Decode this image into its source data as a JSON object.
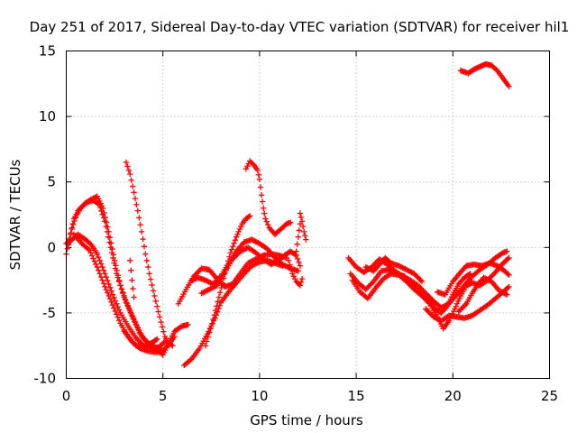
{
  "chart_data": {
    "type": "scatter",
    "title": "Day 251 of 2017, Sidereal Day-to-day VTEC variation (SDTVAR) for receiver hil1",
    "xlabel": "GPS time / hours",
    "ylabel": "SDTVAR / TECUs",
    "xlim": [
      0,
      25
    ],
    "ylim": [
      -10,
      15
    ],
    "xticks": [
      0,
      5,
      10,
      15,
      20,
      25
    ],
    "yticks": [
      -10,
      -5,
      0,
      5,
      10,
      15
    ],
    "grid": true,
    "marker": "plus",
    "color": "#ff0000",
    "series": [
      {
        "name": "arc-1",
        "points": [
          [
            0.0,
            -0.5
          ],
          [
            0.3,
            1.5
          ],
          [
            0.6,
            2.8
          ],
          [
            1.0,
            3.4
          ],
          [
            1.4,
            3.6
          ],
          [
            1.7,
            3.3
          ],
          [
            2.0,
            2.0
          ],
          [
            2.3,
            0.0
          ],
          [
            2.6,
            -2.0
          ],
          [
            3.0,
            -3.8
          ],
          [
            3.4,
            -5.2
          ],
          [
            3.8,
            -6.5
          ],
          [
            4.2,
            -7.3
          ],
          [
            4.6,
            -7.6
          ],
          [
            5.0,
            -7.9
          ],
          [
            5.3,
            -7.4
          ],
          [
            5.6,
            -6.8
          ]
        ]
      },
      {
        "name": "arc-2",
        "points": [
          [
            0.1,
            0.2
          ],
          [
            0.4,
            2.2
          ],
          [
            0.8,
            3.1
          ],
          [
            1.2,
            3.6
          ],
          [
            1.6,
            3.9
          ],
          [
            1.9,
            3.0
          ],
          [
            2.2,
            1.2
          ],
          [
            2.5,
            -1.0
          ],
          [
            2.8,
            -2.9
          ],
          [
            3.1,
            -4.2
          ],
          [
            3.5,
            -5.5
          ],
          [
            3.9,
            -6.8
          ],
          [
            4.3,
            -7.4
          ],
          [
            4.7,
            -7.8
          ],
          [
            5.0,
            -8.2
          ],
          [
            5.3,
            -7.3
          ],
          [
            5.6,
            -6.4
          ],
          [
            6.0,
            -6.0
          ],
          [
            6.3,
            -5.9
          ]
        ]
      },
      {
        "name": "arc-3",
        "points": [
          [
            0.0,
            0.3
          ],
          [
            0.3,
            0.6
          ],
          [
            0.6,
            1.0
          ],
          [
            1.0,
            0.6
          ],
          [
            1.3,
            0.2
          ],
          [
            1.6,
            -0.5
          ],
          [
            2.0,
            -2.0
          ],
          [
            2.4,
            -3.6
          ],
          [
            2.8,
            -5.0
          ],
          [
            3.2,
            -6.0
          ],
          [
            3.6,
            -6.9
          ],
          [
            4.0,
            -7.5
          ],
          [
            4.4,
            -7.7
          ],
          [
            4.8,
            -7.6
          ],
          [
            5.1,
            -7.2
          ]
        ]
      },
      {
        "name": "arc-4",
        "points": [
          [
            0.4,
            1.0
          ],
          [
            0.8,
            0.3
          ],
          [
            1.2,
            -0.2
          ],
          [
            1.6,
            -1.5
          ],
          [
            2.0,
            -3.0
          ],
          [
            2.4,
            -4.4
          ],
          [
            2.8,
            -5.8
          ],
          [
            3.2,
            -6.8
          ],
          [
            3.6,
            -7.5
          ],
          [
            4.0,
            -7.6
          ],
          [
            4.4,
            -7.3
          ],
          [
            4.7,
            -7.0
          ]
        ]
      },
      {
        "name": "arc-5",
        "points": [
          [
            3.1,
            6.5
          ],
          [
            3.3,
            5.6
          ],
          [
            3.5,
            4.2
          ],
          [
            3.7,
            2.8
          ],
          [
            3.9,
            1.2
          ],
          [
            4.1,
            -0.5
          ],
          [
            4.3,
            -2.0
          ],
          [
            4.5,
            -3.3
          ],
          [
            4.7,
            -4.5
          ],
          [
            4.9,
            -5.7
          ],
          [
            5.1,
            -6.8
          ],
          [
            5.3,
            -7.3
          ],
          [
            5.5,
            -7.5
          ]
        ]
      },
      {
        "name": "arc-6",
        "points": [
          [
            3.0,
            -6.4
          ],
          [
            3.4,
            -7.2
          ],
          [
            3.8,
            -7.7
          ],
          [
            4.2,
            -7.9
          ],
          [
            4.6,
            -8.0
          ],
          [
            5.0,
            -8.0
          ]
        ]
      },
      {
        "name": "arc-7",
        "points": [
          [
            3.3,
            -1.0
          ],
          [
            3.4,
            -2.5
          ],
          [
            3.5,
            -3.8
          ]
        ]
      },
      {
        "name": "arc-8",
        "points": [
          [
            5.8,
            -4.3
          ],
          [
            6.2,
            -3.2
          ],
          [
            6.6,
            -2.2
          ],
          [
            7.0,
            -1.6
          ],
          [
            7.4,
            -1.7
          ],
          [
            7.8,
            -2.4
          ],
          [
            8.2,
            -3.0
          ],
          [
            8.6,
            -2.8
          ],
          [
            9.0,
            -2.0
          ],
          [
            9.4,
            -1.2
          ],
          [
            9.8,
            -0.9
          ],
          [
            10.2,
            -0.6
          ],
          [
            10.6,
            -0.5
          ],
          [
            11.0,
            -0.6
          ],
          [
            11.4,
            -0.8
          ]
        ]
      },
      {
        "name": "arc-9",
        "points": [
          [
            6.1,
            -9.0
          ],
          [
            6.5,
            -8.5
          ],
          [
            6.9,
            -7.7
          ],
          [
            7.3,
            -6.6
          ],
          [
            7.7,
            -5.4
          ],
          [
            8.0,
            -4.2
          ],
          [
            8.4,
            -3.4
          ],
          [
            8.8,
            -2.7
          ],
          [
            9.2,
            -2.0
          ],
          [
            9.6,
            -1.4
          ],
          [
            10.0,
            -1.1
          ],
          [
            10.4,
            -1.0
          ],
          [
            10.8,
            -1.2
          ],
          [
            11.2,
            -1.4
          ]
        ]
      },
      {
        "name": "arc-10",
        "points": [
          [
            6.5,
            -2.5
          ],
          [
            6.8,
            -2.3
          ],
          [
            7.2,
            -2.5
          ],
          [
            7.6,
            -2.8
          ],
          [
            8.0,
            -2.2
          ],
          [
            8.4,
            -1.2
          ],
          [
            8.8,
            -0.3
          ],
          [
            9.2,
            0.4
          ],
          [
            9.6,
            0.6
          ],
          [
            10.0,
            0.3
          ],
          [
            10.4,
            -0.1
          ],
          [
            10.8,
            -0.8
          ],
          [
            11.2,
            -1.3
          ],
          [
            11.6,
            -1.6
          ],
          [
            12.0,
            -1.8
          ]
        ]
      },
      {
        "name": "arc-11",
        "points": [
          [
            7.2,
            -7.5
          ],
          [
            7.6,
            -5.5
          ],
          [
            7.9,
            -3.8
          ],
          [
            8.2,
            -2.0
          ],
          [
            8.5,
            -0.4
          ],
          [
            8.8,
            0.8
          ],
          [
            9.1,
            1.8
          ],
          [
            9.3,
            2.2
          ],
          [
            9.5,
            2.4
          ]
        ]
      },
      {
        "name": "arc-12",
        "points": [
          [
            9.3,
            6.0
          ],
          [
            9.5,
            6.6
          ],
          [
            9.7,
            6.3
          ],
          [
            9.9,
            5.9
          ],
          [
            10.0,
            5.2
          ],
          [
            10.1,
            4.0
          ],
          [
            10.2,
            3.0
          ],
          [
            10.3,
            2.2
          ],
          [
            10.5,
            1.5
          ],
          [
            10.8,
            1.0
          ],
          [
            11.1,
            1.4
          ],
          [
            11.4,
            1.8
          ],
          [
            11.6,
            1.9
          ]
        ]
      },
      {
        "name": "arc-13",
        "points": [
          [
            7.0,
            -3.5
          ],
          [
            7.4,
            -3.2
          ],
          [
            7.8,
            -2.9
          ],
          [
            8.2,
            -1.9
          ],
          [
            8.6,
            -0.9
          ],
          [
            9.0,
            -0.3
          ],
          [
            9.4,
            0.0
          ],
          [
            9.8,
            -0.4
          ],
          [
            10.2,
            -0.9
          ],
          [
            10.6,
            -1.3
          ],
          [
            11.0,
            -1.0
          ],
          [
            11.3,
            -0.6
          ],
          [
            11.6,
            -0.3
          ],
          [
            11.9,
            -0.6
          ],
          [
            12.1,
            -1.4
          ]
        ]
      },
      {
        "name": "arc-14",
        "points": [
          [
            11.5,
            -1.0
          ],
          [
            11.7,
            -2.0
          ],
          [
            11.9,
            -2.6
          ],
          [
            12.1,
            -2.9
          ],
          [
            12.2,
            -2.4
          ]
        ]
      },
      {
        "name": "arc-15",
        "points": [
          [
            11.9,
            -0.3
          ],
          [
            12.0,
            0.8
          ],
          [
            12.1,
            1.8
          ],
          [
            12.1,
            2.6
          ],
          [
            12.2,
            2.0
          ],
          [
            12.3,
            1.2
          ],
          [
            12.4,
            0.6
          ]
        ]
      },
      {
        "name": "arc-16",
        "points": [
          [
            14.6,
            -0.8
          ],
          [
            15.0,
            -1.5
          ],
          [
            15.4,
            -1.9
          ],
          [
            15.8,
            -1.5
          ],
          [
            16.2,
            -0.9
          ],
          [
            16.6,
            -1.3
          ],
          [
            17.0,
            -1.8
          ],
          [
            17.4,
            -2.2
          ],
          [
            17.8,
            -2.5
          ],
          [
            18.2,
            -2.9
          ],
          [
            18.6,
            -3.5
          ],
          [
            19.0,
            -4.1
          ],
          [
            19.4,
            -4.6
          ],
          [
            19.8,
            -4.3
          ],
          [
            20.2,
            -3.6
          ],
          [
            20.6,
            -2.9
          ],
          [
            21.0,
            -2.2
          ],
          [
            21.4,
            -1.7
          ],
          [
            21.8,
            -1.3
          ],
          [
            22.2,
            -0.8
          ],
          [
            22.6,
            -0.4
          ],
          [
            22.8,
            -0.3
          ]
        ]
      },
      {
        "name": "arc-17",
        "points": [
          [
            14.8,
            -2.5
          ],
          [
            15.2,
            -3.4
          ],
          [
            15.6,
            -3.9
          ],
          [
            16.0,
            -3.1
          ],
          [
            16.4,
            -2.4
          ],
          [
            16.8,
            -2.0
          ],
          [
            17.2,
            -2.1
          ],
          [
            17.6,
            -2.6
          ],
          [
            18.0,
            -3.2
          ],
          [
            18.4,
            -3.7
          ],
          [
            18.8,
            -4.3
          ],
          [
            19.2,
            -5.3
          ],
          [
            19.5,
            -6.2
          ],
          [
            19.8,
            -5.6
          ],
          [
            20.1,
            -4.7
          ],
          [
            20.4,
            -3.7
          ],
          [
            20.7,
            -2.9
          ],
          [
            21.0,
            -2.7
          ],
          [
            21.4,
            -2.9
          ],
          [
            21.8,
            -2.5
          ],
          [
            22.2,
            -1.9
          ],
          [
            22.6,
            -1.2
          ],
          [
            22.9,
            -0.8
          ]
        ]
      },
      {
        "name": "arc-18",
        "points": [
          [
            14.7,
            -2.0
          ],
          [
            15.1,
            -2.7
          ],
          [
            15.5,
            -3.2
          ],
          [
            15.9,
            -2.6
          ],
          [
            16.3,
            -1.8
          ],
          [
            16.7,
            -1.7
          ],
          [
            17.1,
            -2.0
          ],
          [
            17.5,
            -2.2
          ],
          [
            17.9,
            -2.9
          ],
          [
            18.3,
            -3.5
          ],
          [
            18.7,
            -4.0
          ],
          [
            19.1,
            -4.7
          ],
          [
            19.4,
            -5.0
          ],
          [
            19.7,
            -4.5
          ],
          [
            20.0,
            -3.6
          ],
          [
            20.3,
            -2.8
          ],
          [
            20.6,
            -2.3
          ],
          [
            20.9,
            -2.0
          ]
        ]
      },
      {
        "name": "arc-19",
        "points": [
          [
            15.5,
            -1.5
          ],
          [
            15.9,
            -1.8
          ],
          [
            16.2,
            -1.3
          ],
          [
            16.5,
            -0.8
          ],
          [
            16.8,
            -1.2
          ],
          [
            17.2,
            -1.4
          ],
          [
            17.6,
            -1.7
          ],
          [
            18.0,
            -2.0
          ],
          [
            18.4,
            -2.6
          ]
        ]
      },
      {
        "name": "arc-20",
        "points": [
          [
            18.6,
            -4.7
          ],
          [
            19.0,
            -5.3
          ],
          [
            19.4,
            -5.6
          ],
          [
            19.8,
            -5.2
          ],
          [
            20.2,
            -5.3
          ],
          [
            20.6,
            -5.4
          ],
          [
            21.0,
            -5.2
          ],
          [
            21.4,
            -4.8
          ],
          [
            21.8,
            -4.4
          ],
          [
            22.2,
            -3.9
          ],
          [
            22.6,
            -3.4
          ],
          [
            22.9,
            -3.0
          ]
        ]
      },
      {
        "name": "arc-21",
        "points": [
          [
            19.2,
            -3.4
          ],
          [
            19.6,
            -3.6
          ],
          [
            20.0,
            -2.6
          ],
          [
            20.4,
            -1.9
          ],
          [
            20.7,
            -1.4
          ],
          [
            21.1,
            -1.3
          ],
          [
            21.5,
            -1.4
          ],
          [
            21.9,
            -1.2
          ],
          [
            22.3,
            -1.4
          ],
          [
            22.6,
            -1.7
          ],
          [
            22.9,
            -2.1
          ]
        ]
      },
      {
        "name": "arc-22",
        "points": [
          [
            20.3,
            -4.9
          ],
          [
            20.7,
            -4.3
          ],
          [
            21.0,
            -3.5
          ],
          [
            21.3,
            -2.8
          ],
          [
            21.6,
            -2.3
          ],
          [
            22.0,
            -2.6
          ],
          [
            22.4,
            -3.3
          ],
          [
            22.8,
            -3.6
          ]
        ]
      },
      {
        "name": "arc-23",
        "points": [
          [
            20.4,
            13.5
          ],
          [
            20.8,
            13.3
          ],
          [
            21.1,
            13.6
          ],
          [
            21.4,
            13.8
          ],
          [
            21.7,
            14.0
          ],
          [
            22.0,
            13.9
          ],
          [
            22.3,
            13.5
          ],
          [
            22.6,
            12.9
          ],
          [
            22.9,
            12.3
          ]
        ]
      }
    ]
  }
}
